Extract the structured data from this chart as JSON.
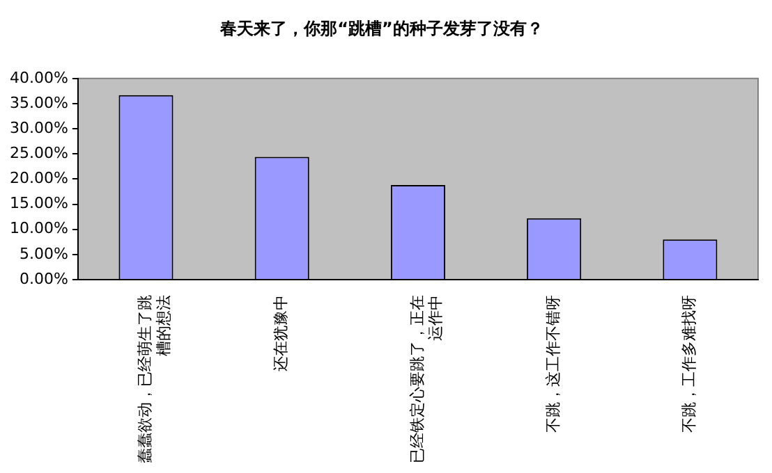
{
  "chart_data": {
    "type": "bar",
    "title": "春天来了，你那“跳槽”的种子发芽了没有？",
    "categories": [
      "蠢蠢欲动，已经萌生了跳槽的想法",
      "还在犹豫中",
      "已经铁定心要跳了，正在运作中",
      "不跳，这工作不错呀",
      "不跳，工作多难找呀"
    ],
    "values": [
      36.7,
      24.4,
      18.8,
      12.2,
      8.0
    ],
    "color": "#9999ff",
    "ylim": [
      0,
      40
    ],
    "yticks": [
      {
        "value": 0,
        "label": "0.00%"
      },
      {
        "value": 5,
        "label": "5.00%"
      },
      {
        "value": 10,
        "label": "10.00%"
      },
      {
        "value": 15,
        "label": "15.00%"
      },
      {
        "value": 20,
        "label": "20.00%"
      },
      {
        "value": 25,
        "label": "25.00%"
      },
      {
        "value": 30,
        "label": "30.00%"
      },
      {
        "value": 35,
        "label": "35.00%"
      },
      {
        "value": 40,
        "label": "40.00%"
      }
    ],
    "grid": false,
    "legend": false
  }
}
